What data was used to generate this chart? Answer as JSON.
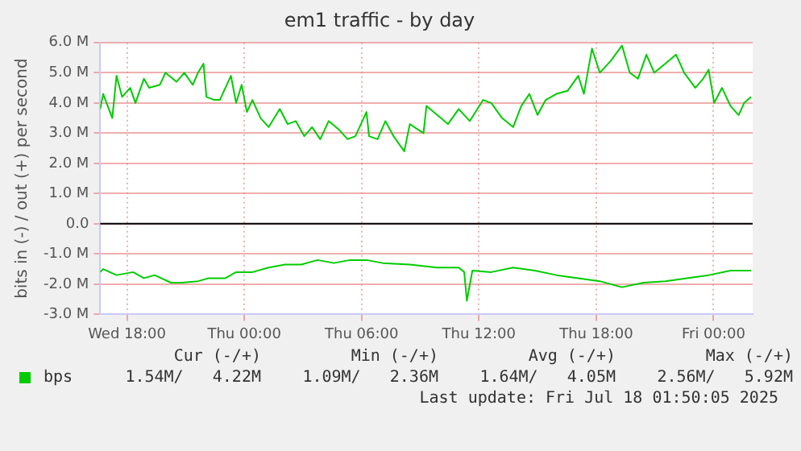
{
  "chart_data": {
    "type": "line",
    "title": "em1 traffic - by day",
    "ylabel": "bits in (-) / out (+) per second",
    "xlim": [
      "2025-07-16T16:38",
      "2025-07-18T02:00"
    ],
    "xticks": [
      {
        "value": "2025-07-16T18:00",
        "label": "Wed 18:00"
      },
      {
        "value": "2025-07-17T00:00",
        "label": "Thu 00:00"
      },
      {
        "value": "2025-07-17T06:00",
        "label": "Thu 06:00"
      },
      {
        "value": "2025-07-17T12:00",
        "label": "Thu 12:00"
      },
      {
        "value": "2025-07-17T18:00",
        "label": "Thu 18:00"
      },
      {
        "value": "2025-07-18T00:00",
        "label": "Fri 00:00"
      }
    ],
    "ylim": [
      -3,
      6
    ],
    "yticks": [
      {
        "value": -3,
        "label": "-3.0 M"
      },
      {
        "value": -2,
        "label": "-2.0 M"
      },
      {
        "value": -1,
        "label": "-1.0 M"
      },
      {
        "value": 0,
        "label": "0.0"
      },
      {
        "value": 1,
        "label": "1.0 M"
      },
      {
        "value": 2,
        "label": "2.0 M"
      },
      {
        "value": 3,
        "label": "3.0 M"
      },
      {
        "value": 4,
        "label": "4.0 M"
      },
      {
        "value": 5,
        "label": "5.0 M"
      },
      {
        "value": 6,
        "label": "6.0 M"
      }
    ],
    "series": [
      {
        "name": "bps",
        "color": "#00cc00",
        "x": [
          "2025-07-16T16:38",
          "2025-07-16T16:47",
          "2025-07-16T17:15",
          "2025-07-16T17:28",
          "2025-07-16T17:45",
          "2025-07-16T18:10",
          "2025-07-16T18:26",
          "2025-07-16T18:52",
          "2025-07-16T19:08",
          "2025-07-16T19:41",
          "2025-07-16T19:58",
          "2025-07-16T20:32",
          "2025-07-16T20:56",
          "2025-07-16T21:22",
          "2025-07-16T21:38",
          "2025-07-16T21:55",
          "2025-07-16T22:04",
          "2025-07-16T22:28",
          "2025-07-16T22:45",
          "2025-07-16T23:19",
          "2025-07-16T23:35",
          "2025-07-16T23:52",
          "2025-07-17T00:08",
          "2025-07-17T00:25",
          "2025-07-17T00:50",
          "2025-07-17T01:15",
          "2025-07-17T01:49",
          "2025-07-17T02:13",
          "2025-07-17T02:38",
          "2025-07-17T03:04",
          "2025-07-17T03:28",
          "2025-07-17T03:53",
          "2025-07-17T04:19",
          "2025-07-17T04:52",
          "2025-07-17T05:17",
          "2025-07-17T05:41",
          "2025-07-17T06:15",
          "2025-07-17T06:23",
          "2025-07-17T06:49",
          "2025-07-17T07:13",
          "2025-07-17T07:38",
          "2025-07-17T08:11",
          "2025-07-17T08:28",
          "2025-07-17T09:10",
          "2025-07-17T09:19",
          "2025-07-17T09:52",
          "2025-07-17T10:25",
          "2025-07-17T10:58",
          "2025-07-17T11:32",
          "2025-07-17T12:13",
          "2025-07-17T12:38",
          "2025-07-17T13:11",
          "2025-07-17T13:45",
          "2025-07-17T14:10",
          "2025-07-17T14:35",
          "2025-07-17T15:00",
          "2025-07-17T15:25",
          "2025-07-17T15:58",
          "2025-07-17T16:32",
          "2025-07-17T17:05",
          "2025-07-17T17:22",
          "2025-07-17T17:47",
          "2025-07-17T18:11",
          "2025-07-17T18:45",
          "2025-07-17T19:19",
          "2025-07-17T19:43",
          "2025-07-17T20:08",
          "2025-07-17T20:34",
          "2025-07-17T20:58",
          "2025-07-17T21:32",
          "2025-07-17T22:05",
          "2025-07-17T22:30",
          "2025-07-17T23:04",
          "2025-07-17T23:28",
          "2025-07-17T23:45",
          "2025-07-18T00:02",
          "2025-07-18T00:26",
          "2025-07-18T00:52",
          "2025-07-18T01:17",
          "2025-07-18T01:34",
          "2025-07-18T01:55"
        ],
        "values": [
          3.8,
          4.3,
          3.5,
          4.9,
          4.2,
          4.5,
          4.0,
          4.8,
          4.5,
          4.6,
          5.0,
          4.7,
          5.0,
          4.6,
          5.0,
          5.3,
          4.2,
          4.1,
          4.1,
          4.9,
          4.0,
          4.6,
          3.7,
          4.1,
          3.5,
          3.2,
          3.8,
          3.3,
          3.4,
          2.9,
          3.2,
          2.8,
          3.4,
          3.1,
          2.8,
          2.9,
          3.7,
          2.9,
          2.8,
          3.4,
          2.9,
          2.4,
          3.3,
          3.0,
          3.9,
          3.6,
          3.3,
          3.8,
          3.4,
          4.1,
          4.0,
          3.5,
          3.2,
          3.9,
          4.3,
          3.6,
          4.1,
          4.3,
          4.4,
          4.9,
          4.3,
          5.8,
          5.0,
          5.4,
          5.9,
          5.0,
          4.8,
          5.6,
          5.0,
          5.3,
          5.6,
          5.0,
          4.5,
          4.8,
          5.1,
          4.0,
          4.5,
          3.9,
          3.6,
          4.0,
          4.2
        ]
      },
      {
        "color": "#00cc00",
        "x": [
          "2025-07-16T16:38",
          "2025-07-16T16:47",
          "2025-07-16T17:28",
          "2025-07-16T18:19",
          "2025-07-16T18:52",
          "2025-07-16T19:25",
          "2025-07-16T20:15",
          "2025-07-16T20:49",
          "2025-07-16T21:38",
          "2025-07-16T22:11",
          "2025-07-16T23:02",
          "2025-07-16T23:35",
          "2025-07-17T00:25",
          "2025-07-17T01:15",
          "2025-07-17T02:05",
          "2025-07-17T02:55",
          "2025-07-17T03:45",
          "2025-07-17T04:35",
          "2025-07-17T05:25",
          "2025-07-17T06:15",
          "2025-07-17T07:05",
          "2025-07-17T08:28",
          "2025-07-17T09:52",
          "2025-07-17T10:58",
          "2025-07-17T11:15",
          "2025-07-17T11:23",
          "2025-07-17T11:40",
          "2025-07-17T12:38",
          "2025-07-17T13:45",
          "2025-07-17T14:52",
          "2025-07-17T15:58",
          "2025-07-17T17:05",
          "2025-07-17T18:11",
          "2025-07-17T19:19",
          "2025-07-17T20:25",
          "2025-07-17T21:32",
          "2025-07-17T22:38",
          "2025-07-17T23:45",
          "2025-07-18T00:52",
          "2025-07-18T01:55"
        ],
        "values": [
          -1.6,
          -1.5,
          -1.7,
          -1.6,
          -1.8,
          -1.7,
          -1.95,
          -1.95,
          -1.9,
          -1.8,
          -1.8,
          -1.6,
          -1.6,
          -1.45,
          -1.35,
          -1.35,
          -1.2,
          -1.3,
          -1.2,
          -1.2,
          -1.3,
          -1.35,
          -1.45,
          -1.45,
          -1.6,
          -2.55,
          -1.55,
          -1.6,
          -1.45,
          -1.55,
          -1.7,
          -1.8,
          -1.9,
          -2.1,
          -1.95,
          -1.9,
          -1.8,
          -1.7,
          -1.55,
          -1.55
        ]
      }
    ],
    "ref_lines": [
      {
        "axis": "y",
        "value": 0,
        "color": "#000000"
      }
    ],
    "grid": true,
    "legend": "bottom",
    "annotations": [
      "Cur (-/+)",
      "Min (-/+)",
      "Avg (-/+)",
      "Max (-/+)",
      "1.54M/   4.22M",
      "1.09M/   2.36M",
      "1.64M/   4.05M",
      "2.56M/   5.92M",
      "Last update: Fri Jul 18 01:50:05 2025"
    ]
  }
}
